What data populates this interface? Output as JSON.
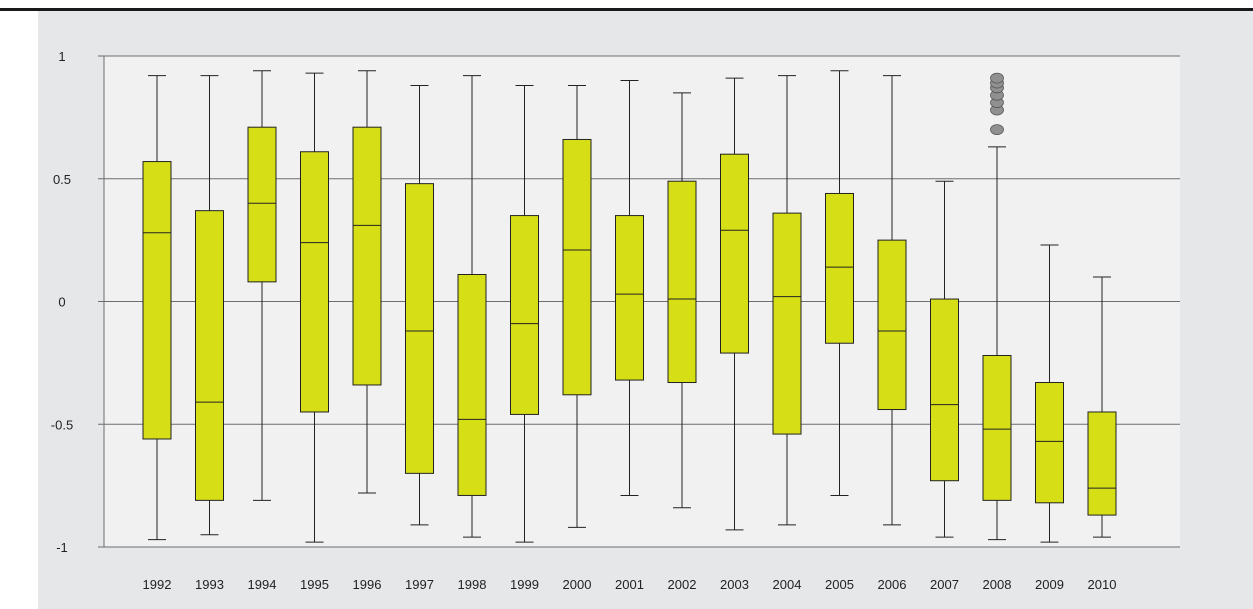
{
  "colors": {
    "panel_background": "#e6e7e8",
    "plot_background": "#f1f1f1",
    "box_fill": "#d6de16",
    "box_stroke": "#222222",
    "grid": "#6d6d6d",
    "outlier_fill": "#909090",
    "top_rule": "#1a1a1a"
  },
  "chart_data": {
    "type": "boxplot",
    "title": "",
    "xlabel": "",
    "ylabel": "",
    "ylim": [
      -1,
      1
    ],
    "y_ticks": [
      1,
      0.5,
      0,
      -0.5,
      -1
    ],
    "y_tick_labels": [
      "1",
      "0.5",
      "0",
      "-0.5",
      "-1"
    ],
    "grid": "horizontal",
    "legend": "none",
    "categories": [
      "1992",
      "1993",
      "1994",
      "1995",
      "1996",
      "1997",
      "1998",
      "1999",
      "2000",
      "2001",
      "2002",
      "2003",
      "2004",
      "2005",
      "2006",
      "2007",
      "2008",
      "2009",
      "2010"
    ],
    "boxes": [
      {
        "category": "1992",
        "min": -0.97,
        "q1": -0.56,
        "median": 0.28,
        "q3": 0.57,
        "max": 0.92
      },
      {
        "category": "1993",
        "min": -0.95,
        "q1": -0.81,
        "median": -0.41,
        "q3": 0.37,
        "max": 0.92
      },
      {
        "category": "1994",
        "min": -0.81,
        "q1": 0.08,
        "median": 0.4,
        "q3": 0.71,
        "max": 0.94
      },
      {
        "category": "1995",
        "min": -0.98,
        "q1": -0.45,
        "median": 0.24,
        "q3": 0.61,
        "max": 0.93
      },
      {
        "category": "1996",
        "min": -0.78,
        "q1": -0.34,
        "median": 0.31,
        "q3": 0.71,
        "max": 0.94
      },
      {
        "category": "1997",
        "min": -0.91,
        "q1": -0.7,
        "median": -0.12,
        "q3": 0.48,
        "max": 0.88
      },
      {
        "category": "1998",
        "min": -0.96,
        "q1": -0.79,
        "median": -0.48,
        "q3": 0.11,
        "max": 0.92
      },
      {
        "category": "1999",
        "min": -0.98,
        "q1": -0.46,
        "median": -0.09,
        "q3": 0.35,
        "max": 0.88
      },
      {
        "category": "2000",
        "min": -0.92,
        "q1": -0.38,
        "median": 0.21,
        "q3": 0.66,
        "max": 0.88
      },
      {
        "category": "2001",
        "min": -0.79,
        "q1": -0.32,
        "median": 0.03,
        "q3": 0.35,
        "max": 0.9
      },
      {
        "category": "2002",
        "min": -0.84,
        "q1": -0.33,
        "median": 0.01,
        "q3": 0.49,
        "max": 0.85
      },
      {
        "category": "2003",
        "min": -0.93,
        "q1": -0.21,
        "median": 0.29,
        "q3": 0.6,
        "max": 0.91
      },
      {
        "category": "2004",
        "min": -0.91,
        "q1": -0.54,
        "median": 0.02,
        "q3": 0.36,
        "max": 0.92
      },
      {
        "category": "2005",
        "min": -0.79,
        "q1": -0.17,
        "median": 0.14,
        "q3": 0.44,
        "max": 0.94
      },
      {
        "category": "2006",
        "min": -0.91,
        "q1": -0.44,
        "median": -0.12,
        "q3": 0.25,
        "max": 0.92
      },
      {
        "category": "2007",
        "min": -0.96,
        "q1": -0.73,
        "median": -0.42,
        "q3": 0.01,
        "max": 0.49
      },
      {
        "category": "2008",
        "min": -0.97,
        "q1": -0.81,
        "median": -0.52,
        "q3": -0.22,
        "max": 0.63,
        "outliers": [
          0.7,
          0.78,
          0.81,
          0.84,
          0.87,
          0.89,
          0.91
        ]
      },
      {
        "category": "2009",
        "min": -0.98,
        "q1": -0.82,
        "median": -0.57,
        "q3": -0.33,
        "max": 0.23
      },
      {
        "category": "2010",
        "min": -0.96,
        "q1": -0.87,
        "median": -0.76,
        "q3": -0.45,
        "max": 0.1
      }
    ]
  }
}
